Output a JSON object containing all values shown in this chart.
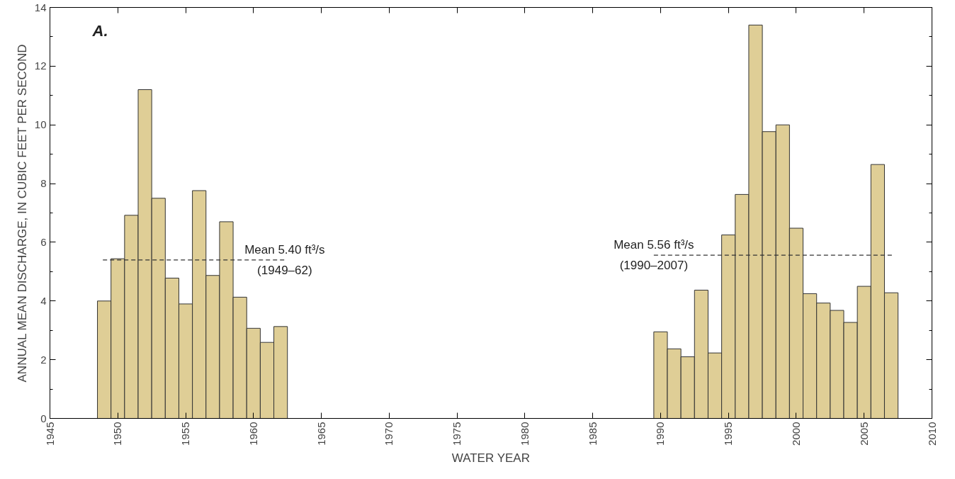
{
  "chart_data": {
    "type": "bar",
    "xlabel": "WATER YEAR",
    "ylabel": "ANNUAL MEAN DISCHARGE, IN CUBIC FEET PER SECOND",
    "x": [
      1949,
      1950,
      1951,
      1952,
      1953,
      1954,
      1955,
      1956,
      1957,
      1958,
      1959,
      1960,
      1961,
      1962,
      1990,
      1991,
      1992,
      1993,
      1994,
      1995,
      1996,
      1997,
      1998,
      1999,
      2000,
      2001,
      2002,
      2003,
      2004,
      2005,
      2006,
      2007
    ],
    "series": [
      {
        "color": "#dfce96",
        "values": [
          4.0,
          5.44,
          6.92,
          11.2,
          7.5,
          4.78,
          3.9,
          7.76,
          4.87,
          6.7,
          4.13,
          3.07,
          2.59,
          3.13,
          2.95,
          2.37,
          2.1,
          4.37,
          2.23,
          6.25,
          7.63,
          13.4,
          9.77,
          10.0,
          6.48,
          4.25,
          3.93,
          3.68,
          3.27,
          4.5,
          8.65,
          4.28
        ]
      },
      {
        "type": "line",
        "color": "#333333",
        "line_style": "dashed",
        "x": [
          1948.9,
          1962.3
        ],
        "values": [
          5.4,
          5.4
        ]
      },
      {
        "type": "line",
        "color": "#333333",
        "line_style": "dashed",
        "x": [
          1989.5,
          2007.2
        ],
        "values": [
          5.56,
          5.56
        ]
      }
    ],
    "annotations": [
      {
        "text": "Mean 5.40 ft³/s\n(1949–62)",
        "x": 1962.3,
        "y": 5.4
      },
      {
        "text": "Mean 5.56 ft³/s\n(1990–2007)",
        "x": 1989.5,
        "y": 5.56
      },
      "A."
    ],
    "xlim": [
      1945,
      2010
    ],
    "xticks": [
      1945,
      1950,
      1955,
      1960,
      1965,
      1970,
      1975,
      1980,
      1985,
      1990,
      1995,
      2000,
      2005,
      2010
    ],
    "ylim": [
      0,
      14
    ],
    "yticks": [
      0,
      2,
      4,
      6,
      8,
      10,
      12,
      14
    ],
    "grid": false
  }
}
